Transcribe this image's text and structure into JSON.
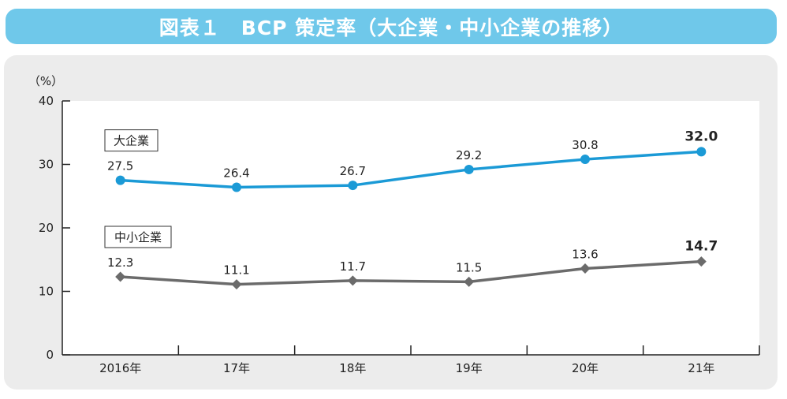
{
  "title": "図表１　BCP 策定率（大企業・中小企業の推移）",
  "chart_data": {
    "type": "line",
    "categories": [
      "2016年",
      "17年",
      "18年",
      "19年",
      "20年",
      "21年"
    ],
    "ylabel": "（%）",
    "ylim": [
      0,
      40
    ],
    "yticks": [
      "0",
      "10",
      "20",
      "30",
      "40"
    ],
    "grid": false,
    "series": [
      {
        "name": "大企業",
        "values": [
          27.5,
          26.4,
          26.7,
          29.2,
          30.8,
          32.0
        ],
        "labels": [
          "27.5",
          "26.4",
          "26.7",
          "29.2",
          "30.8",
          "32.0"
        ],
        "marker": "circle",
        "color": "#1b9ad6"
      },
      {
        "name": "中小企業",
        "values": [
          12.3,
          11.1,
          11.7,
          11.5,
          13.6,
          14.7
        ],
        "labels": [
          "12.3",
          "11.1",
          "11.7",
          "11.5",
          "13.6",
          "14.7"
        ],
        "marker": "diamond",
        "color": "#6b6b6b"
      }
    ]
  }
}
